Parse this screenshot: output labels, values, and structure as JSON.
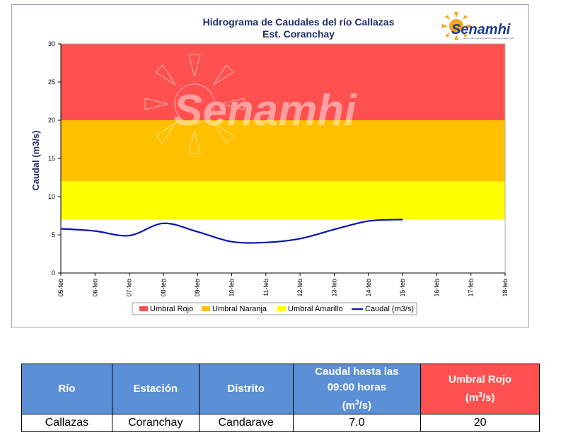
{
  "chart_data": {
    "type": "line",
    "title": "Hidrograma de Caudales del río Callazas",
    "subtitle": "Est. Coranchay",
    "ylabel": "Caudal (m3/s)",
    "xlabel": "",
    "ylim": [
      0,
      30
    ],
    "yticks": [
      "0",
      "5",
      "10",
      "15",
      "20",
      "25",
      "30"
    ],
    "categories": [
      "05-feb",
      "06-feb",
      "07-feb",
      "08-feb",
      "09-feb",
      "10-feb",
      "11-feb",
      "12-feb",
      "13-feb",
      "14-feb",
      "15-feb",
      "16-feb",
      "17-feb",
      "18-feb"
    ],
    "bands": [
      {
        "name": "Umbral Rojo",
        "from": 20,
        "to": 30,
        "color": "#ff5050"
      },
      {
        "name": "Umbral Naranja",
        "from": 12,
        "to": 20,
        "color": "#ffc000"
      },
      {
        "name": "Umbral Amarillo",
        "from": 7,
        "to": 12,
        "color": "#ffff00"
      }
    ],
    "series": [
      {
        "name": "Caudal (m3/s)",
        "color": "#0a14b4",
        "x": [
          0,
          1,
          2,
          3,
          4,
          5,
          6,
          7,
          8,
          9,
          10
        ],
        "values": [
          5.8,
          5.5,
          4.9,
          6.5,
          5.4,
          4.1,
          4.0,
          4.5,
          5.7,
          6.8,
          7.0
        ]
      }
    ],
    "legend_position": "bottom",
    "grid": false,
    "watermark": "Senamhi"
  },
  "logo": {
    "text": "Senamhi",
    "tagline": "SERVICIO NACIONAL DE METEOROLOGÍA E HIDROLOGÍA DEL PERÚ"
  },
  "table": {
    "headers": {
      "rio": "Río",
      "estacion": "Estación",
      "distrito": "Distrito",
      "caudal_line1": "Caudal hasta las",
      "caudal_line2": "09:00 horas",
      "caudal_unit_pre": "(m",
      "caudal_unit_sup": "3",
      "caudal_unit_post": "/s)",
      "umbral_line1": "Umbral Rojo",
      "umbral_unit_pre": "(m",
      "umbral_unit_sup": "3",
      "umbral_unit_post": "/s)"
    },
    "row": {
      "rio": "Callazas",
      "estacion": "Coranchay",
      "distrito": "Candarave",
      "caudal": "7.0",
      "umbral": "20"
    }
  }
}
